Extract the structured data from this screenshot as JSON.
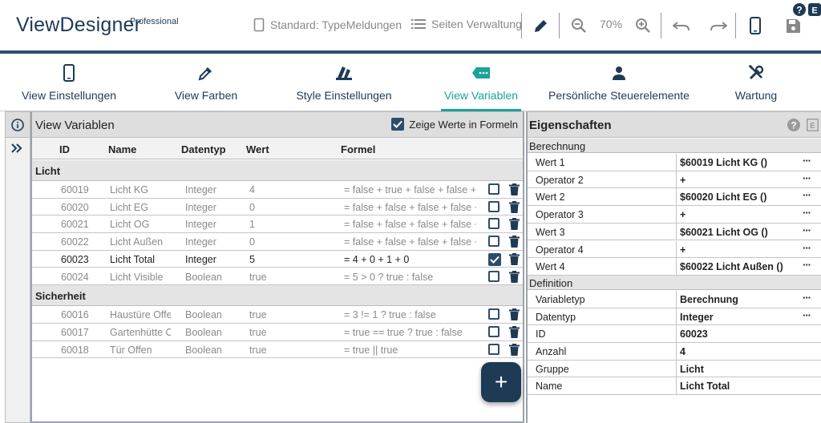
{
  "app": {
    "title": "ViewDesigner",
    "edition": "Professional"
  },
  "toolbar": {
    "standard_label": "Standard: TypeMeldungen",
    "pages_label": "Seiten Verwaltung",
    "zoom_level": "70%"
  },
  "tabs": [
    {
      "label": "View Einstellungen",
      "icon": "phone-icon"
    },
    {
      "label": "View Farben",
      "icon": "eyedropper-icon"
    },
    {
      "label": "Style Einstellungen",
      "icon": "palette-icon"
    },
    {
      "label": "View Variablen",
      "icon": "label-icon",
      "active": true
    },
    {
      "label": "Persönliche Steuerelemente",
      "icon": "person-icon"
    },
    {
      "label": "Wartung",
      "icon": "tools-icon"
    }
  ],
  "main": {
    "title": "View Variablen",
    "show_values_label": "Zeige Werte in Formeln",
    "show_values_checked": true,
    "columns": {
      "id": "ID",
      "name": "Name",
      "type": "Datentyp",
      "value": "Wert",
      "formula": "Formel"
    },
    "groups": [
      {
        "name": "Licht",
        "rows": [
          {
            "id": "60019",
            "name": "Licht KG",
            "type": "Integer",
            "value": "4",
            "formula": "= false + true + false + false +"
          },
          {
            "id": "60020",
            "name": "Licht EG",
            "type": "Integer",
            "value": "0",
            "formula": "= false + false + false + false +"
          },
          {
            "id": "60021",
            "name": "Licht OG",
            "type": "Integer",
            "value": "1",
            "formula": "= false + false + false + false +"
          },
          {
            "id": "60022",
            "name": "Licht Außen",
            "type": "Integer",
            "value": "0",
            "formula": "= false + false + false + false +"
          },
          {
            "id": "60023",
            "name": "Licht Total",
            "type": "Integer",
            "value": "5",
            "formula": "= 4 + 0 + 1 + 0",
            "selected": true
          },
          {
            "id": "60024",
            "name": "Licht Visible",
            "type": "Boolean",
            "value": "true",
            "formula": "= 5 > 0 ? true : false"
          }
        ]
      },
      {
        "name": "Sicherheit",
        "rows": [
          {
            "id": "60016",
            "name": "Haustüre Offen",
            "type": "Boolean",
            "value": "true",
            "formula": "= 3 != 1 ? true : false"
          },
          {
            "id": "60017",
            "name": "Gartenhütte Offen",
            "type": "Boolean",
            "value": "true",
            "formula": "= true == true ? true : false"
          },
          {
            "id": "60018",
            "name": "Tür Offen",
            "type": "Boolean",
            "value": "true",
            "formula": "= true || true"
          }
        ]
      }
    ],
    "add_button": "+"
  },
  "props": {
    "title": "Eigenschaften",
    "help_icon": "help-circle-icon",
    "sections": [
      {
        "name": "Berechnung",
        "rows": [
          {
            "label": "Wert 1",
            "value": "$60019 Licht KG ()",
            "more": true
          },
          {
            "label": "Operator 2",
            "value": "+",
            "more": true
          },
          {
            "label": "Wert 2",
            "value": "$60020 Licht EG ()",
            "more": true
          },
          {
            "label": "Operator 3",
            "value": "+",
            "more": true
          },
          {
            "label": "Wert 3",
            "value": "$60021 Licht OG ()",
            "more": true
          },
          {
            "label": "Operator 4",
            "value": "+",
            "more": true
          },
          {
            "label": "Wert 4",
            "value": "$60022 Licht Außen ()",
            "more": true
          }
        ]
      },
      {
        "name": "Definition",
        "rows": [
          {
            "label": "Variabletyp",
            "value": "Berechnung",
            "more": true
          },
          {
            "label": "Datentyp",
            "value": "Integer",
            "more": true
          },
          {
            "label": "ID",
            "value": "60023",
            "more": false
          },
          {
            "label": "Anzahl",
            "value": "4",
            "more": false
          },
          {
            "label": "Gruppe",
            "value": "Licht",
            "more": false
          },
          {
            "label": "Name",
            "value": "Licht Total",
            "more": false
          }
        ]
      }
    ],
    "more_label": "···"
  },
  "colors": {
    "primary": "#1f3a55",
    "accent": "#1aa39a"
  }
}
